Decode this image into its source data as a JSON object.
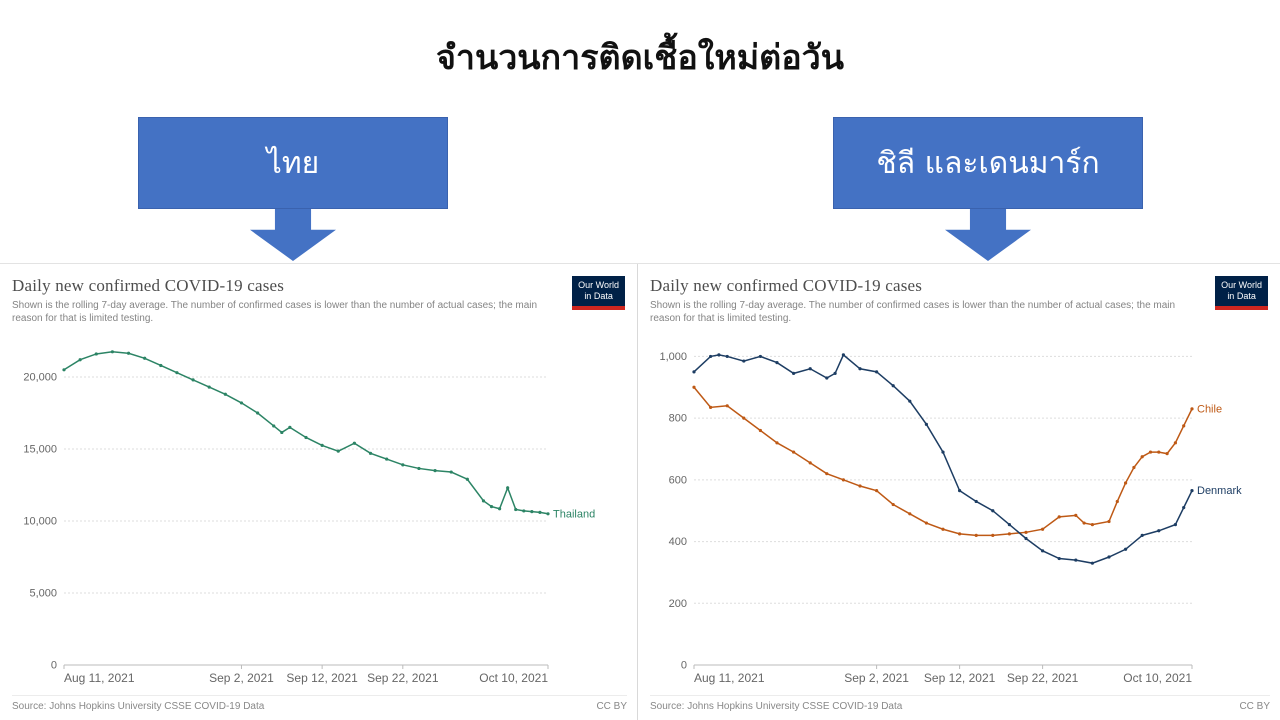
{
  "page": {
    "title": "จำนวนการติดเชื้อใหม่ต่อวัน"
  },
  "callouts": [
    {
      "label": "ไทย"
    },
    {
      "label": "ชิลี และเดนมาร์ก"
    }
  ],
  "colors": {
    "callout_blue": "#4472C4",
    "thailand": "#2C8465",
    "chile": "#BE5915",
    "denmark": "#1D3D63",
    "owid_navy": "#002147",
    "owid_red": "#CE261F"
  },
  "chart_data": [
    {
      "type": "line",
      "title": "Daily new confirmed COVID-19 cases",
      "subtitle": "Shown is the rolling 7-day average. The number of confirmed cases is lower than the number of actual cases; the main reason for that is limited testing.",
      "logo": {
        "line1": "Our World",
        "line2": "in Data"
      },
      "source": "Source: Johns Hopkins University CSSE COVID-19 Data",
      "license": "CC BY",
      "grid": true,
      "legend_position": "end-of-line",
      "x_tick_labels": [
        "Aug 11, 2021",
        "Sep 2, 2021",
        "Sep 12, 2021",
        "Sep 22, 2021",
        "Oct 10, 2021"
      ],
      "x_tick_days": [
        0,
        22,
        32,
        42,
        60
      ],
      "x_range_days": [
        0,
        60
      ],
      "y_ticks": [
        0,
        5000,
        10000,
        15000,
        20000
      ],
      "y_tick_labels": [
        "0",
        "5,000",
        "10,000",
        "15,000",
        "20,000"
      ],
      "ylim": [
        0,
        22500
      ],
      "series": [
        {
          "name": "Thailand",
          "color": "#2C8465",
          "x_days": [
            0,
            2,
            4,
            6,
            8,
            10,
            12,
            14,
            16,
            18,
            20,
            22,
            24,
            26,
            27,
            28,
            30,
            32,
            34,
            36,
            38,
            40,
            42,
            44,
            46,
            48,
            50,
            52,
            53,
            54,
            55,
            56,
            57,
            58,
            59,
            60
          ],
          "values": [
            20500,
            21200,
            21600,
            21750,
            21650,
            21300,
            20800,
            20300,
            19800,
            19300,
            18800,
            18200,
            17500,
            16600,
            16150,
            16500,
            15800,
            15250,
            14850,
            15400,
            14700,
            14300,
            13900,
            13650,
            13500,
            13400,
            12900,
            11400,
            11000,
            10850,
            12300,
            10800,
            10700,
            10650,
            10600,
            10500
          ]
        }
      ]
    },
    {
      "type": "line",
      "title": "Daily new confirmed COVID-19 cases",
      "subtitle": "Shown is the rolling 7-day average. The number of confirmed cases is lower than the number of actual cases; the main reason for that is limited testing.",
      "logo": {
        "line1": "Our World",
        "line2": "in Data"
      },
      "source": "Source: Johns Hopkins University CSSE COVID-19 Data",
      "license": "CC BY",
      "grid": true,
      "legend_position": "end-of-line",
      "x_tick_labels": [
        "Aug 11, 2021",
        "Sep 2, 2021",
        "Sep 12, 2021",
        "Sep 22, 2021",
        "Oct 10, 2021"
      ],
      "x_tick_days": [
        0,
        22,
        32,
        42,
        60
      ],
      "x_range_days": [
        0,
        60
      ],
      "y_ticks": [
        0,
        200,
        400,
        600,
        800,
        1000
      ],
      "y_tick_labels": [
        "0",
        "200",
        "400",
        "600",
        "800",
        "1,000"
      ],
      "ylim": [
        0,
        1050
      ],
      "series": [
        {
          "name": "Chile",
          "color": "#BE5915",
          "x_days": [
            0,
            2,
            4,
            6,
            8,
            10,
            12,
            14,
            16,
            18,
            20,
            22,
            24,
            26,
            28,
            30,
            32,
            34,
            36,
            38,
            40,
            42,
            44,
            46,
            47,
            48,
            50,
            51,
            52,
            53,
            54,
            55,
            56,
            57,
            58,
            59,
            60
          ],
          "values": [
            900,
            835,
            840,
            800,
            760,
            720,
            690,
            655,
            620,
            600,
            580,
            565,
            520,
            490,
            460,
            440,
            425,
            420,
            420,
            425,
            430,
            440,
            480,
            485,
            460,
            455,
            465,
            530,
            590,
            640,
            675,
            690,
            690,
            685,
            720,
            775,
            830
          ]
        },
        {
          "name": "Denmark",
          "color": "#1D3D63",
          "x_days": [
            0,
            2,
            3,
            4,
            6,
            8,
            10,
            12,
            14,
            16,
            17,
            18,
            20,
            22,
            24,
            26,
            28,
            30,
            32,
            34,
            36,
            38,
            40,
            42,
            44,
            46,
            48,
            50,
            52,
            54,
            56,
            58,
            59,
            60
          ],
          "values": [
            950,
            1000,
            1005,
            1000,
            985,
            1000,
            980,
            945,
            960,
            930,
            945,
            1005,
            960,
            950,
            905,
            855,
            780,
            690,
            565,
            530,
            500,
            455,
            410,
            370,
            345,
            340,
            330,
            350,
            375,
            420,
            435,
            455,
            510,
            565
          ]
        }
      ]
    }
  ]
}
